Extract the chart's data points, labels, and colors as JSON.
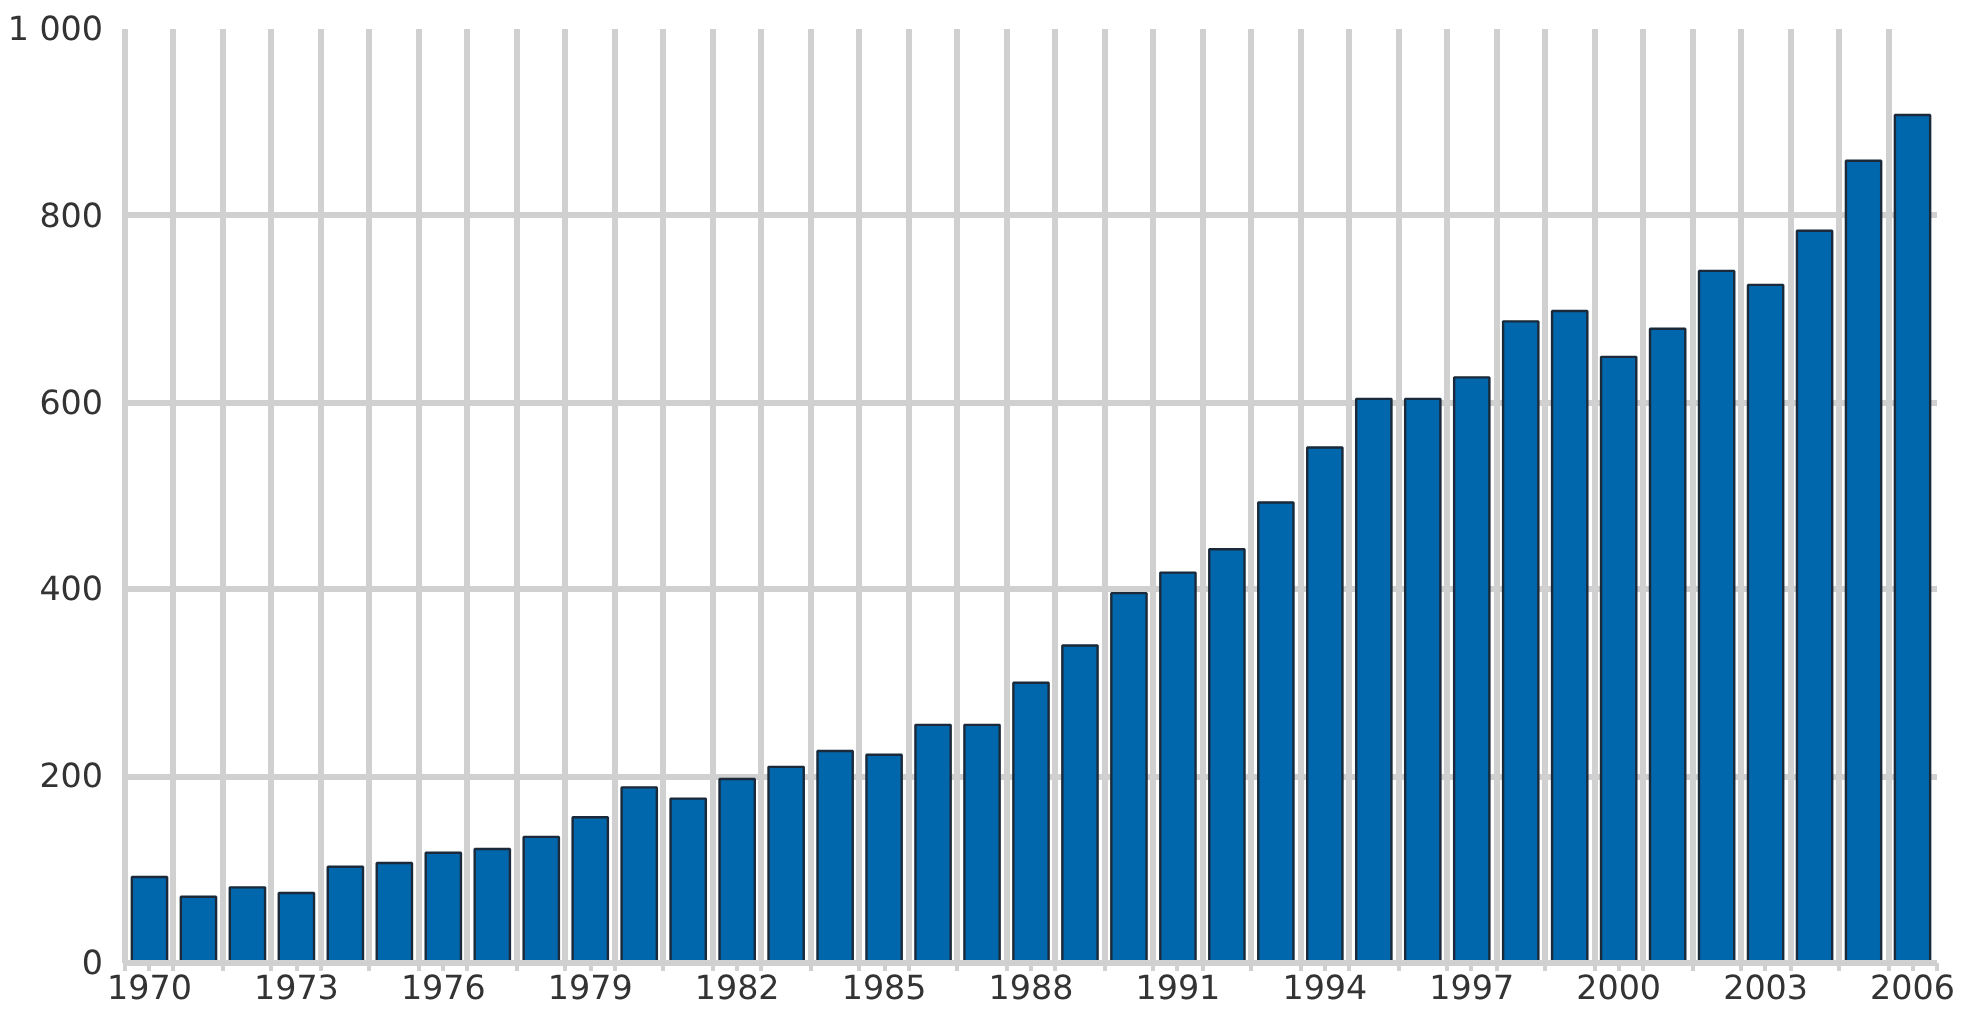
{
  "chart_data": {
    "type": "bar",
    "x": [
      1970,
      1971,
      1972,
      1973,
      1974,
      1975,
      1976,
      1977,
      1978,
      1979,
      1980,
      1981,
      1982,
      1983,
      1984,
      1985,
      1986,
      1987,
      1988,
      1989,
      1990,
      1991,
      1992,
      1993,
      1994,
      1995,
      1996,
      1997,
      1998,
      1999,
      2000,
      2001,
      2002,
      2003,
      2004,
      2005,
      2006
    ],
    "values": [
      92,
      71,
      81,
      75,
      103,
      107,
      118,
      122,
      135,
      156,
      188,
      176,
      197,
      210,
      227,
      223,
      255,
      255,
      300,
      340,
      396,
      418,
      443,
      493,
      552,
      604,
      604,
      627,
      687,
      698,
      649,
      679,
      741,
      726,
      784,
      859,
      908
    ],
    "color": "#0067ac",
    "xlim": [
      1969.5,
      2006.5
    ],
    "xticks": [
      {
        "value": 1969.5,
        "label": null
      },
      1970,
      {
        "value": 1970.5,
        "label": null
      },
      {
        "value": 1971.5,
        "label": null
      },
      {
        "value": 1972.5,
        "label": null
      },
      1973,
      {
        "value": 1973.5,
        "label": null
      },
      {
        "value": 1974.5,
        "label": null
      },
      {
        "value": 1975.5,
        "label": null
      },
      1976,
      {
        "value": 1976.5,
        "label": null
      },
      {
        "value": 1977.5,
        "label": null
      },
      {
        "value": 1978.5,
        "label": null
      },
      1979,
      {
        "value": 1979.5,
        "label": null
      },
      {
        "value": 1980.5,
        "label": null
      },
      {
        "value": 1981.5,
        "label": null
      },
      1982,
      {
        "value": 1982.5,
        "label": null
      },
      {
        "value": 1983.5,
        "label": null
      },
      {
        "value": 1984.5,
        "label": null
      },
      1985,
      {
        "value": 1985.5,
        "label": null
      },
      {
        "value": 1986.5,
        "label": null
      },
      {
        "value": 1987.5,
        "label": null
      },
      1988,
      {
        "value": 1988.5,
        "label": null
      },
      {
        "value": 1989.5,
        "label": null
      },
      {
        "value": 1990.5,
        "label": null
      },
      1991,
      {
        "value": 1991.5,
        "label": null
      },
      {
        "value": 1992.5,
        "label": null
      },
      {
        "value": 1993.5,
        "label": null
      },
      1994,
      {
        "value": 1994.5,
        "label": null
      },
      {
        "value": 1995.5,
        "label": null
      },
      {
        "value": 1996.5,
        "label": null
      },
      1997,
      {
        "value": 1997.5,
        "label": null
      },
      {
        "value": 1998.5,
        "label": null
      },
      {
        "value": 1999.5,
        "label": null
      },
      2000,
      {
        "value": 2000.5,
        "label": null
      },
      {
        "value": 2001.5,
        "label": null
      },
      {
        "value": 2002.5,
        "label": null
      },
      2003,
      {
        "value": 2003.5,
        "label": null
      },
      {
        "value": 2004.5,
        "label": null
      },
      {
        "value": 2005.5,
        "label": null
      },
      2006,
      {
        "value": 2006.5,
        "label": null
      }
    ],
    "ylim": [
      0,
      1000
    ],
    "yticks": [
      0,
      200,
      400,
      600,
      800,
      {
        "value": 1000,
        "label": "1 000"
      }
    ],
    "grid": true
  }
}
